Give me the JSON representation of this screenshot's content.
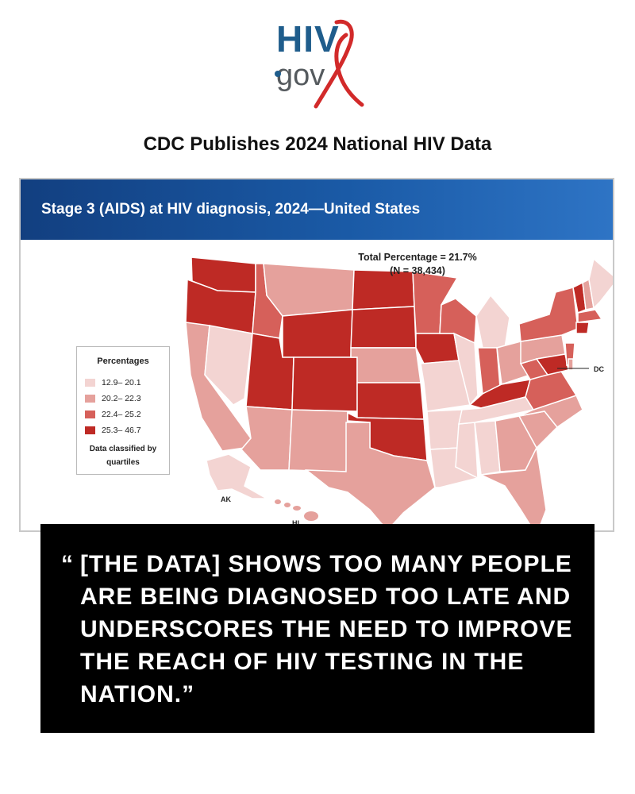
{
  "logo": {
    "line1": "HIV",
    "line2": "gov"
  },
  "headline": "CDC Publishes 2024 National HIV Data",
  "map_panel": {
    "title": "Stage 3 (AIDS) at HIV diagnosis, 2024—United States",
    "total_line1": "Total Percentage = 21.7%",
    "total_line2": "(N = 38,434)",
    "legend": {
      "title": "Percentages",
      "items": [
        {
          "label": "12.9– 20.1",
          "color": "#f3d4d2"
        },
        {
          "label": "20.2– 22.3",
          "color": "#e5a19c"
        },
        {
          "label": "22.4– 25.2",
          "color": "#d6605a"
        },
        {
          "label": "25.3– 46.7",
          "color": "#be2a25"
        }
      ],
      "note_line1": "Data classified by",
      "note_line2": "quartiles"
    },
    "labels": {
      "ak": "AK",
      "hi": "HI",
      "dc": "DC"
    }
  },
  "quote": {
    "open_mark": "“",
    "text": "[THE DATA] SHOWS TOO MANY PEOPLE ARE BEING DIAGNOSED TOO LATE AND UNDERSCORES THE NEED TO IMPROVE THE REACH OF HIV TESTING IN THE NATION.”"
  },
  "colors": {
    "q1": "#f3d4d2",
    "q2": "#e5a19c",
    "q3": "#d6605a",
    "q4": "#be2a25",
    "header": "#1a5aa6"
  }
}
